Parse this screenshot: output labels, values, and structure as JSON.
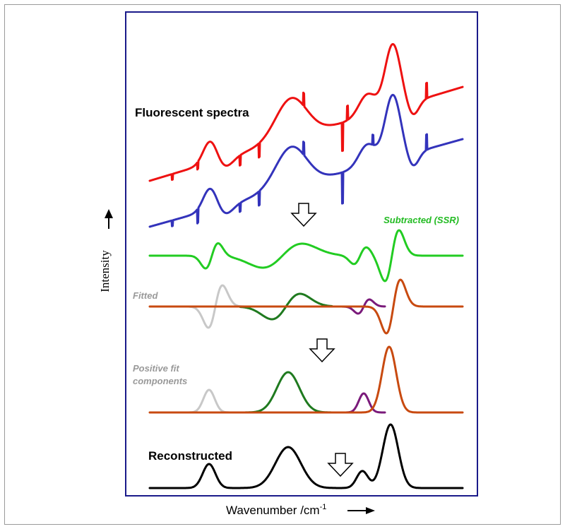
{
  "labels": {
    "fluorescent": "Fluorescent spectra",
    "subtracted": "Subtracted (SSR)",
    "fitted": "Fitted",
    "positive_line1": "Positive fit",
    "positive_line2": "components",
    "reconstructed": "Reconstructed",
    "y_axis": "Intensity",
    "x_axis_main": "Wavenumber /cm",
    "x_axis_sup": "-1"
  },
  "colors": {
    "spectrum_1": "#ee1111",
    "spectrum_2": "#3333bb",
    "subtracted": "#22cc22",
    "subtracted_label": "#22bb22",
    "fit_grey": "#c8c8c8",
    "fit_green": "#1f7a1f",
    "fit_purple": "#7a1a7a",
    "fit_orange": "#c84a10",
    "reconstructed": "#000000",
    "frame": "#1a1a8a",
    "muted_label": "#999999"
  },
  "icons": [
    "down-arrow-icon",
    "down-arrow-icon",
    "down-arrow-icon",
    "up-arrow-icon",
    "right-arrow-icon"
  ]
}
